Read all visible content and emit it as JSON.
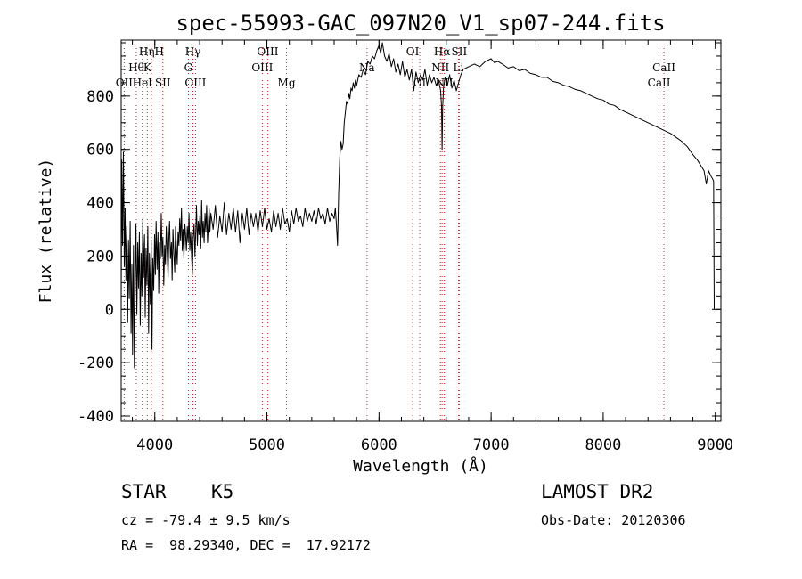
{
  "chart_data": {
    "type": "line",
    "title": "spec-55993-GAC_097N20_V1_sp07-244.fits",
    "xlabel": "Wavelength (Å)",
    "ylabel": "Flux (relative)",
    "xlim": [
      3700,
      9050
    ],
    "ylim": [
      -420,
      1010
    ],
    "x_ticks": [
      4000,
      5000,
      6000,
      7000,
      8000,
      9000
    ],
    "y_ticks": [
      -400,
      -200,
      0,
      200,
      400,
      600,
      800
    ],
    "grid": false,
    "series": [
      {
        "name": "",
        "color": "#000000",
        "points": [
          [
            3700,
            0
          ],
          [
            3705,
            560
          ],
          [
            3712,
            240
          ],
          [
            3720,
            590
          ],
          [
            3728,
            160
          ],
          [
            3735,
            380
          ],
          [
            3742,
            110
          ],
          [
            3750,
            310
          ],
          [
            3758,
            -50
          ],
          [
            3765,
            260
          ],
          [
            3772,
            40
          ],
          [
            3780,
            330
          ],
          [
            3788,
            -90
          ],
          [
            3795,
            170
          ],
          [
            3802,
            -170
          ],
          [
            3810,
            240
          ],
          [
            3818,
            -220
          ],
          [
            3825,
            110
          ],
          [
            3832,
            320
          ],
          [
            3840,
            -20
          ],
          [
            3848,
            250
          ],
          [
            3855,
            80
          ],
          [
            3862,
            290
          ],
          [
            3870,
            -60
          ],
          [
            3878,
            210
          ],
          [
            3885,
            50
          ],
          [
            3893,
            340
          ],
          [
            3900,
            120
          ],
          [
            3908,
            280
          ],
          [
            3915,
            -30
          ],
          [
            3922,
            230
          ],
          [
            3930,
            90
          ],
          [
            3938,
            310
          ],
          [
            3945,
            -90
          ],
          [
            3952,
            210
          ],
          [
            3960,
            20
          ],
          [
            3968,
            260
          ],
          [
            3975,
            -150
          ],
          [
            3982,
            190
          ],
          [
            3990,
            70
          ],
          [
            3998,
            280
          ],
          [
            4005,
            130
          ],
          [
            4012,
            330
          ],
          [
            4020,
            150
          ],
          [
            4028,
            290
          ],
          [
            4035,
            60
          ],
          [
            4042,
            250
          ],
          [
            4050,
            190
          ],
          [
            4058,
            360
          ],
          [
            4065,
            200
          ],
          [
            4072,
            270
          ],
          [
            4080,
            90
          ],
          [
            4088,
            240
          ],
          [
            4095,
            170
          ],
          [
            4102,
            310
          ],
          [
            4110,
            220
          ],
          [
            4118,
            120
          ],
          [
            4125,
            270
          ],
          [
            4132,
            330
          ],
          [
            4140,
            190
          ],
          [
            4148,
            250
          ],
          [
            4155,
            110
          ],
          [
            4162,
            300
          ],
          [
            4170,
            210
          ],
          [
            4178,
            140
          ],
          [
            4185,
            310
          ],
          [
            4192,
            240
          ],
          [
            4200,
            170
          ],
          [
            4208,
            290
          ],
          [
            4215,
            240
          ],
          [
            4222,
            340
          ],
          [
            4230,
            260
          ],
          [
            4238,
            380
          ],
          [
            4245,
            220
          ],
          [
            4252,
            300
          ],
          [
            4260,
            190
          ],
          [
            4268,
            320
          ],
          [
            4275,
            280
          ],
          [
            4282,
            220
          ],
          [
            4290,
            310
          ],
          [
            4298,
            250
          ],
          [
            4305,
            360
          ],
          [
            4312,
            220
          ],
          [
            4320,
            290
          ],
          [
            4328,
            200
          ],
          [
            4335,
            130
          ],
          [
            4342,
            270
          ],
          [
            4350,
            320
          ],
          [
            4358,
            200
          ],
          [
            4365,
            290
          ],
          [
            4372,
            390
          ],
          [
            4380,
            240
          ],
          [
            4388,
            330
          ],
          [
            4395,
            280
          ],
          [
            4402,
            350
          ],
          [
            4410,
            230
          ],
          [
            4418,
            410
          ],
          [
            4425,
            270
          ],
          [
            4432,
            330
          ],
          [
            4440,
            250
          ],
          [
            4448,
            360
          ],
          [
            4455,
            290
          ],
          [
            4462,
            390
          ],
          [
            4470,
            250
          ],
          [
            4478,
            320
          ],
          [
            4485,
            380
          ],
          [
            4492,
            290
          ],
          [
            4500,
            360
          ],
          [
            4520,
            300
          ],
          [
            4540,
            390
          ],
          [
            4560,
            270
          ],
          [
            4580,
            350
          ],
          [
            4600,
            290
          ],
          [
            4620,
            400
          ],
          [
            4640,
            280
          ],
          [
            4660,
            360
          ],
          [
            4680,
            300
          ],
          [
            4700,
            380
          ],
          [
            4720,
            290
          ],
          [
            4740,
            370
          ],
          [
            4760,
            250
          ],
          [
            4780,
            360
          ],
          [
            4800,
            300
          ],
          [
            4820,
            380
          ],
          [
            4840,
            280
          ],
          [
            4860,
            360
          ],
          [
            4880,
            310
          ],
          [
            4900,
            360
          ],
          [
            4920,
            290
          ],
          [
            4940,
            370
          ],
          [
            4960,
            310
          ],
          [
            4980,
            380
          ],
          [
            5000,
            300
          ],
          [
            5020,
            340
          ],
          [
            5040,
            290
          ],
          [
            5060,
            370
          ],
          [
            5080,
            310
          ],
          [
            5100,
            360
          ],
          [
            5120,
            300
          ],
          [
            5140,
            380
          ],
          [
            5160,
            320
          ],
          [
            5180,
            340
          ],
          [
            5200,
            290
          ],
          [
            5220,
            370
          ],
          [
            5240,
            320
          ],
          [
            5260,
            380
          ],
          [
            5280,
            330
          ],
          [
            5300,
            350
          ],
          [
            5320,
            310
          ],
          [
            5340,
            380
          ],
          [
            5360,
            330
          ],
          [
            5380,
            360
          ],
          [
            5400,
            330
          ],
          [
            5420,
            370
          ],
          [
            5440,
            320
          ],
          [
            5460,
            380
          ],
          [
            5480,
            340
          ],
          [
            5500,
            360
          ],
          [
            5520,
            320
          ],
          [
            5540,
            380
          ],
          [
            5560,
            330
          ],
          [
            5580,
            360
          ],
          [
            5600,
            340
          ],
          [
            5610,
            380
          ],
          [
            5620,
            320
          ],
          [
            5630,
            240
          ],
          [
            5640,
            430
          ],
          [
            5650,
            570
          ],
          [
            5660,
            630
          ],
          [
            5670,
            600
          ],
          [
            5680,
            620
          ],
          [
            5690,
            700
          ],
          [
            5700,
            740
          ],
          [
            5710,
            780
          ],
          [
            5720,
            770
          ],
          [
            5730,
            810
          ],
          [
            5740,
            790
          ],
          [
            5750,
            830
          ],
          [
            5760,
            820
          ],
          [
            5770,
            850
          ],
          [
            5780,
            830
          ],
          [
            5790,
            860
          ],
          [
            5800,
            840
          ],
          [
            5820,
            880
          ],
          [
            5840,
            870
          ],
          [
            5860,
            900
          ],
          [
            5880,
            880
          ],
          [
            5900,
            930
          ],
          [
            5920,
            920
          ],
          [
            5940,
            950
          ],
          [
            5960,
            940
          ],
          [
            5980,
            970
          ],
          [
            6000,
            990
          ],
          [
            6015,
            960
          ],
          [
            6030,
            1000
          ],
          [
            6050,
            950
          ],
          [
            6070,
            930
          ],
          [
            6090,
            960
          ],
          [
            6110,
            910
          ],
          [
            6130,
            940
          ],
          [
            6150,
            890
          ],
          [
            6170,
            920
          ],
          [
            6190,
            880
          ],
          [
            6210,
            930
          ],
          [
            6230,
            870
          ],
          [
            6250,
            900
          ],
          [
            6270,
            860
          ],
          [
            6290,
            900
          ],
          [
            6310,
            820
          ],
          [
            6330,
            890
          ],
          [
            6350,
            850
          ],
          [
            6370,
            880
          ],
          [
            6390,
            860
          ],
          [
            6410,
            900
          ],
          [
            6430,
            840
          ],
          [
            6450,
            880
          ],
          [
            6470,
            850
          ],
          [
            6490,
            870
          ],
          [
            6510,
            840
          ],
          [
            6530,
            860
          ],
          [
            6550,
            820
          ],
          [
            6558,
            760
          ],
          [
            6563,
            600
          ],
          [
            6568,
            760
          ],
          [
            6575,
            830
          ],
          [
            6590,
            870
          ],
          [
            6610,
            840
          ],
          [
            6630,
            880
          ],
          [
            6650,
            830
          ],
          [
            6670,
            860
          ],
          [
            6690,
            820
          ],
          [
            6710,
            850
          ],
          [
            6730,
            880
          ],
          [
            6750,
            900
          ],
          [
            6800,
            910
          ],
          [
            6850,
            920
          ],
          [
            6900,
            910
          ],
          [
            6950,
            930
          ],
          [
            7000,
            940
          ],
          [
            7030,
            925
          ],
          [
            7060,
            930
          ],
          [
            7100,
            920
          ],
          [
            7150,
            905
          ],
          [
            7200,
            910
          ],
          [
            7250,
            895
          ],
          [
            7300,
            900
          ],
          [
            7350,
            885
          ],
          [
            7400,
            880
          ],
          [
            7450,
            870
          ],
          [
            7500,
            870
          ],
          [
            7550,
            855
          ],
          [
            7600,
            850
          ],
          [
            7650,
            840
          ],
          [
            7700,
            835
          ],
          [
            7750,
            825
          ],
          [
            7800,
            820
          ],
          [
            7850,
            810
          ],
          [
            7900,
            800
          ],
          [
            7950,
            790
          ],
          [
            8000,
            785
          ],
          [
            8050,
            770
          ],
          [
            8100,
            765
          ],
          [
            8150,
            750
          ],
          [
            8200,
            740
          ],
          [
            8250,
            730
          ],
          [
            8300,
            720
          ],
          [
            8350,
            710
          ],
          [
            8400,
            700
          ],
          [
            8450,
            690
          ],
          [
            8500,
            680
          ],
          [
            8550,
            670
          ],
          [
            8600,
            660
          ],
          [
            8650,
            645
          ],
          [
            8700,
            630
          ],
          [
            8750,
            610
          ],
          [
            8800,
            580
          ],
          [
            8840,
            560
          ],
          [
            8870,
            540
          ],
          [
            8900,
            520
          ],
          [
            8920,
            470
          ],
          [
            8940,
            520
          ],
          [
            8960,
            500
          ],
          [
            8975,
            490
          ],
          [
            8985,
            480
          ],
          [
            8990,
            0
          ]
        ]
      }
    ],
    "lines": [
      {
        "x": 3727,
        "labels": [
          "OII"
        ],
        "row": 3
      },
      {
        "x": 3835,
        "labels": [
          "Hθ"
        ],
        "row": 2
      },
      {
        "x": 3889,
        "labels": [
          "HeI"
        ],
        "row": 3
      },
      {
        "x": 3933,
        "labels": [
          "K"
        ],
        "row": 2
      },
      {
        "x": 3970,
        "labels": [
          "Hη",
          "H"
        ],
        "row": 1
      },
      {
        "x": 4072,
        "labels": [
          "SII"
        ],
        "row": 3
      },
      {
        "x": 4300,
        "labels": [
          "G"
        ],
        "row": 2
      },
      {
        "x": 4340,
        "labels": [
          "Hγ"
        ],
        "row": 1
      },
      {
        "x": 4363,
        "labels": [
          "OIII"
        ],
        "row": 3
      },
      {
        "x": 4959,
        "labels": [
          "OIII"
        ],
        "row": 2
      },
      {
        "x": 5007,
        "labels": [
          "OIII"
        ],
        "row": 1
      },
      {
        "x": 5175,
        "labels": [
          "Mg"
        ],
        "row": 3
      },
      {
        "x": 5893,
        "labels": [
          "Na"
        ],
        "row": 2
      },
      {
        "x": 6300,
        "labels": [
          "OI"
        ],
        "row": 1
      },
      {
        "x": 6363,
        "labels": [
          "OI"
        ],
        "row": 3
      },
      {
        "x": 6548,
        "labels": [
          "NII"
        ],
        "row": 2
      },
      {
        "x": 6563,
        "labels": [
          "Hα"
        ],
        "row": 1
      },
      {
        "x": 6583,
        "labels": [
          "NII"
        ],
        "row": 3
      },
      {
        "x": 6708,
        "labels": [
          "Li"
        ],
        "row": 2
      },
      {
        "x": 6716,
        "labels": [
          "SII"
        ],
        "row": 1
      },
      {
        "x": 8498,
        "labels": [
          "CaII"
        ],
        "row": 3
      },
      {
        "x": 8542,
        "labels": [
          "CaII"
        ],
        "row": 2
      }
    ]
  },
  "info": {
    "class": "STAR",
    "subclass": "K5",
    "cz": "cz = -79.4 ± 9.5 km/s",
    "coords": "RA =  98.29340, DEC =  17.92172",
    "survey": "LAMOST DR2",
    "obs_date": "Obs-Date: 20120306"
  }
}
